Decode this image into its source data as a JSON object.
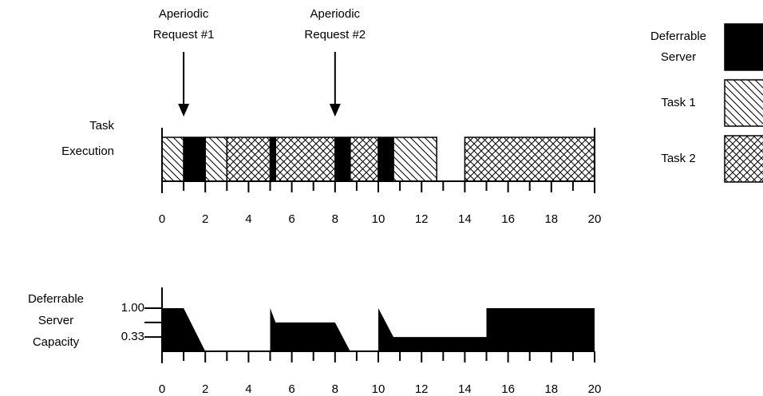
{
  "requests": [
    {
      "label": [
        "Aperiodic",
        "Request #1"
      ],
      "time": 1
    },
    {
      "label": [
        "Aperiodic",
        "Request #2"
      ],
      "time": 8
    }
  ],
  "execution": {
    "label": [
      "Task",
      "Execution"
    ],
    "xlim": [
      0,
      20
    ],
    "xticks": [
      0,
      2,
      4,
      6,
      8,
      10,
      12,
      14,
      16,
      18,
      20
    ],
    "xminor": [
      1,
      3,
      5,
      7,
      9,
      11,
      13,
      15,
      17,
      19
    ],
    "segments": [
      {
        "start": 0,
        "end": 1,
        "kind": 1
      },
      {
        "start": 1,
        "end": 2,
        "kind": 0
      },
      {
        "start": 2,
        "end": 3,
        "kind": 1
      },
      {
        "start": 3,
        "end": 5,
        "kind": 2
      },
      {
        "start": 5,
        "end": 5.25,
        "kind": 0
      },
      {
        "start": 5.25,
        "end": 8,
        "kind": 2
      },
      {
        "start": 8,
        "end": 8.7,
        "kind": 0
      },
      {
        "start": 8.7,
        "end": 10,
        "kind": 2
      },
      {
        "start": 10,
        "end": 10.7,
        "kind": 0
      },
      {
        "start": 10.7,
        "end": 12.7,
        "kind": 1
      },
      {
        "start": 14,
        "end": 20,
        "kind": 2
      }
    ]
  },
  "capacity": {
    "label": [
      "Deferrable",
      "Server",
      "Capacity"
    ],
    "xlim": [
      0,
      20
    ],
    "ylim": [
      0,
      1
    ],
    "xticks": [
      0,
      2,
      4,
      6,
      8,
      10,
      12,
      14,
      16,
      18,
      20
    ],
    "xminor": [
      1,
      3,
      5,
      7,
      9,
      11,
      13,
      15,
      17,
      19
    ],
    "yticks": [
      {
        "value": 1,
        "label": "1.00"
      },
      {
        "value": 0.33,
        "label": "0.33"
      }
    ],
    "yminor": [
      0.67
    ],
    "points": [
      [
        0,
        1
      ],
      [
        1,
        1
      ],
      [
        2,
        0
      ],
      [
        5,
        0
      ],
      [
        5,
        1
      ],
      [
        5.25,
        0.67
      ],
      [
        8,
        0.67
      ],
      [
        8.7,
        0
      ],
      [
        10,
        0
      ],
      [
        10,
        1
      ],
      [
        10.7,
        0.33
      ],
      [
        15,
        0.33
      ],
      [
        15,
        1
      ],
      [
        20,
        1
      ],
      [
        20,
        0
      ]
    ]
  },
  "legend": [
    {
      "label": [
        "Deferrable",
        "Server"
      ]
    },
    {
      "label": [
        "Task 1"
      ]
    },
    {
      "label": [
        "Task 2"
      ]
    }
  ]
}
